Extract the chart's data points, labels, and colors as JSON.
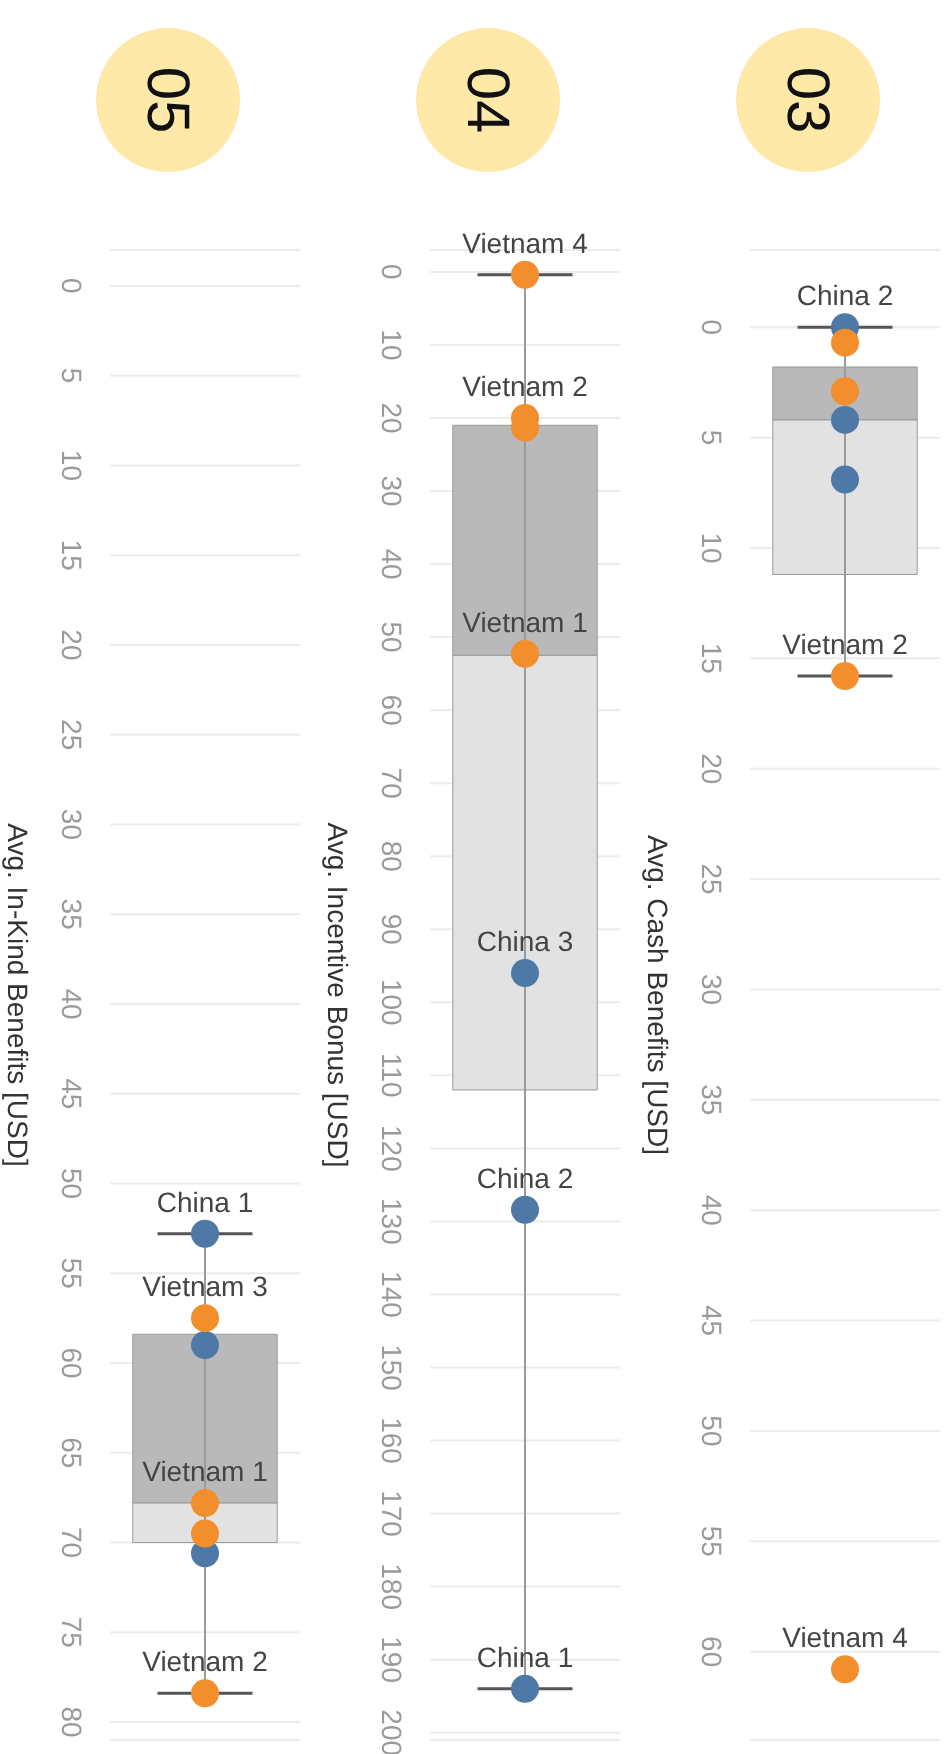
{
  "chart_data": [
    {
      "type": "box",
      "title": "05",
      "ylabel": "Avg. In-Kind Benefits [USD]",
      "categories": [
        null
      ],
      "ylim": [
        81,
        -2
      ],
      "yticks": [
        0,
        5,
        10,
        15,
        20,
        25,
        30,
        35,
        40,
        45,
        50,
        55,
        60,
        65,
        70,
        75,
        80
      ],
      "grid": "y",
      "boxes": [
        {
          "low": 52.8,
          "q1": 58.4,
          "median": 67.8,
          "q3": 70,
          "high": 78.4
        }
      ],
      "series": [
        {
          "type": "scatter",
          "color": "#4e79a7",
          "x": [
            null,
            null,
            null
          ],
          "values": [
            52.8,
            59,
            70.6
          ]
        },
        {
          "type": "scatter",
          "color": "#f28e2b",
          "x": [
            null,
            null,
            null,
            null
          ],
          "values": [
            57.5,
            67.8,
            69.5,
            78.4
          ]
        }
      ],
      "annotations": [
        {
          "text": "China 1",
          "y": 52.8
        },
        {
          "text": "Vietnam 3",
          "y": 57.5
        },
        {
          "text": "Vietnam 1",
          "y": 67.8
        },
        {
          "text": "Vietnam 2",
          "y": 78.4
        }
      ]
    },
    {
      "type": "box",
      "title": "04",
      "ylabel": "Avg. Incentive Bonus [USD]",
      "categories": [
        null
      ],
      "ylim": [
        201,
        -3
      ],
      "yticks": [
        0,
        10,
        20,
        30,
        40,
        50,
        60,
        70,
        80,
        90,
        100,
        110,
        120,
        130,
        140,
        150,
        160,
        170,
        180,
        190,
        200
      ],
      "grid": "y",
      "boxes": [
        {
          "low": 0.4,
          "q1": 21,
          "median": 52.5,
          "q3": 112,
          "high": 194
        }
      ],
      "series": [
        {
          "type": "scatter",
          "color": "#4e79a7",
          "x": [
            null,
            null,
            null
          ],
          "values": [
            96,
            128.4,
            194
          ]
        },
        {
          "type": "scatter",
          "color": "#f28e2b",
          "x": [
            null,
            null,
            null,
            null
          ],
          "values": [
            0.4,
            20,
            21.3,
            52.3
          ]
        }
      ],
      "annotations": [
        {
          "text": "Vietnam 4",
          "y": 0.4
        },
        {
          "text": "Vietnam 2",
          "y": 20
        },
        {
          "text": "Vietnam 1",
          "y": 52.3
        },
        {
          "text": "China 3",
          "y": 96
        },
        {
          "text": "China 2",
          "y": 128.4
        },
        {
          "text": "China 1",
          "y": 194
        }
      ]
    },
    {
      "type": "box",
      "title": "03",
      "ylabel": "Avg. Cash Benefits [USD]",
      "categories": [
        null
      ],
      "ylim": [
        64,
        -3.5
      ],
      "yticks": [
        0,
        5,
        10,
        15,
        20,
        25,
        30,
        35,
        40,
        45,
        50,
        55,
        60
      ],
      "grid": "y",
      "boxes": [
        {
          "low": 0,
          "q1": 1.8,
          "median": 4.2,
          "q3": 11.2,
          "high": 15.8
        }
      ],
      "series": [
        {
          "type": "scatter",
          "color": "#4e79a7",
          "x": [
            null,
            null,
            null
          ],
          "values": [
            0,
            4.2,
            6.9
          ]
        },
        {
          "type": "scatter",
          "color": "#f28e2b",
          "x": [
            null,
            null,
            null,
            null
          ],
          "values": [
            0.7,
            2.9,
            15.8,
            60.8
          ]
        }
      ],
      "annotations": [
        {
          "text": "China 2",
          "y": 0
        },
        {
          "text": "Vietnam 2",
          "y": 15.8
        },
        {
          "text": "Vietnam 4",
          "y": 60.8
        }
      ]
    }
  ]
}
